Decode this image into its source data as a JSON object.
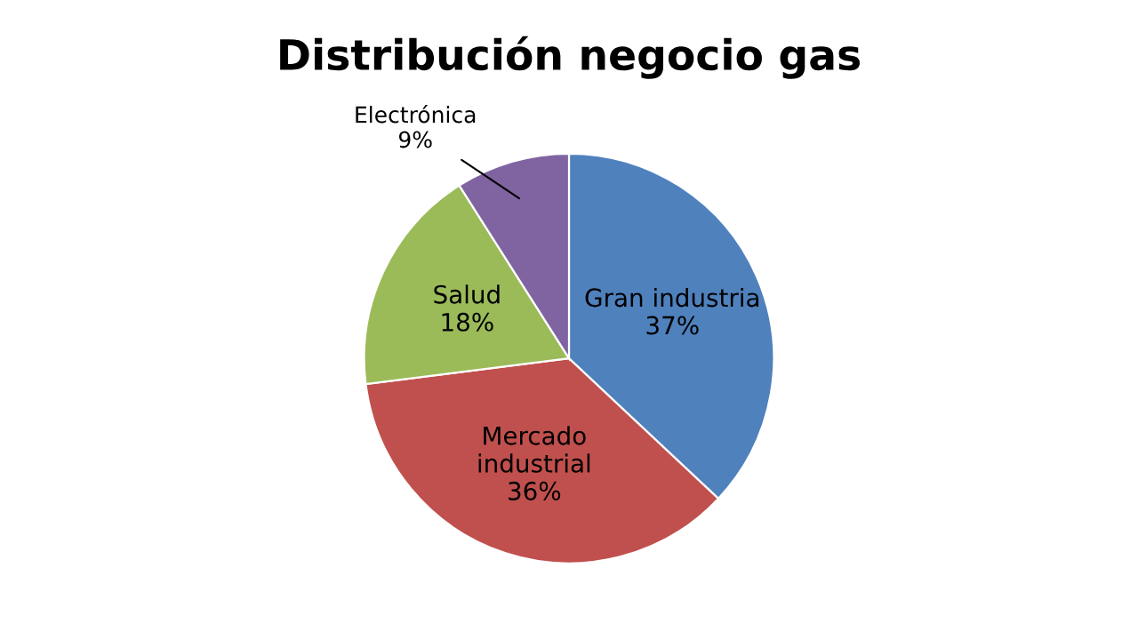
{
  "chart_data": {
    "type": "pie",
    "title": "Distribución negocio gas",
    "categories": [
      "Gran industria",
      "Mercado\nindustrial",
      "Salud",
      "Electrónica"
    ],
    "values": [
      37,
      36,
      18,
      9
    ],
    "value_labels": [
      "37%",
      "36%",
      "18%",
      "9%"
    ],
    "colors": [
      "#4f81bd",
      "#c0504d",
      "#9bbb59",
      "#8064a2"
    ],
    "legend": false
  }
}
